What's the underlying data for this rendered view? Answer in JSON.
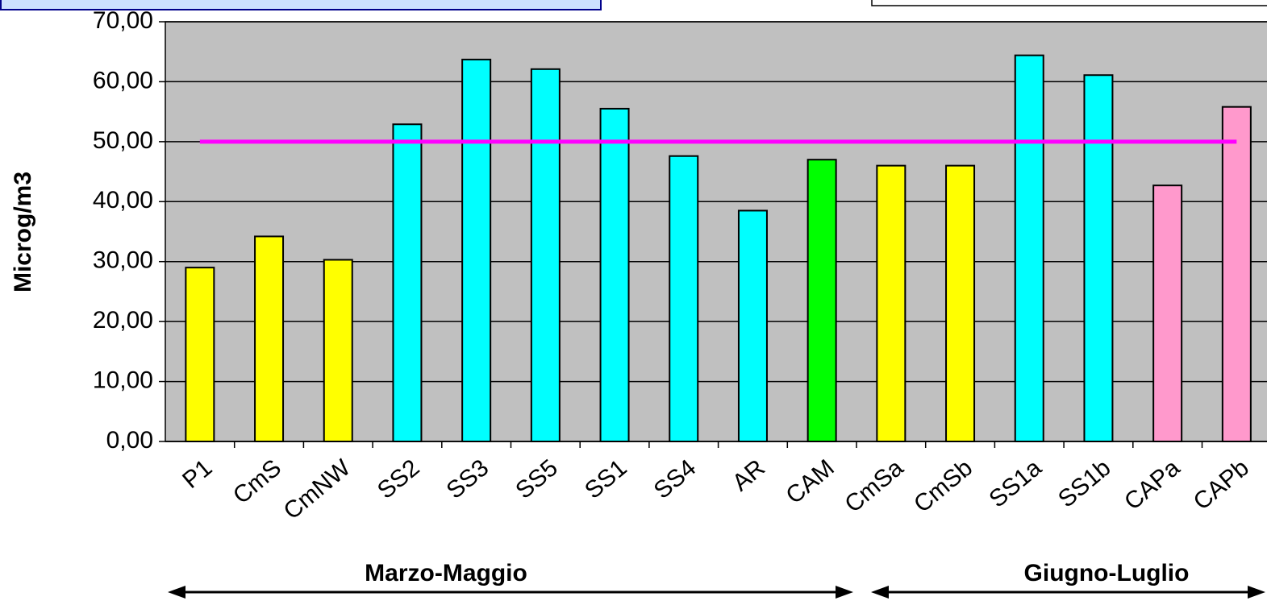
{
  "chart_data": {
    "type": "bar",
    "y_axis_label": "Microg/m3",
    "categories": [
      "P1",
      "CmS",
      "CmNW",
      "SS2",
      "SS3",
      "SS5",
      "SS1",
      "SS4",
      "AR",
      "CAM",
      "CmSa",
      "CmSb",
      "SS1a",
      "SS1b",
      "CAPa",
      "CAPb"
    ],
    "values": [
      29,
      34.2,
      30.3,
      52.9,
      63.7,
      62.1,
      55.5,
      47.6,
      38.5,
      47,
      46,
      46,
      64.4,
      61.1,
      42.7,
      55.8
    ],
    "colors": [
      "#ffff00",
      "#ffff00",
      "#ffff00",
      "#00ffff",
      "#00ffff",
      "#00ffff",
      "#00ffff",
      "#00ffff",
      "#00ffff",
      "#00ff00",
      "#ffff00",
      "#ffff00",
      "#00ffff",
      "#00ffff",
      "#ff99cc",
      "#ff99cc"
    ],
    "ylim": [
      0,
      70
    ],
    "yticks": [
      {
        "value": 0,
        "label": "0,00"
      },
      {
        "value": 10,
        "label": "10,00"
      },
      {
        "value": 20,
        "label": "20,00"
      },
      {
        "value": 30,
        "label": "30,00"
      },
      {
        "value": 40,
        "label": "40,00"
      },
      {
        "value": 50,
        "label": "50,00"
      },
      {
        "value": 60,
        "label": "60,00"
      },
      {
        "value": 70,
        "label": "70,00"
      }
    ],
    "grid": true,
    "reference_line": {
      "value": 50,
      "color": "#ff00ff"
    },
    "groups": [
      "Marzo-Maggio",
      "Giugno-Luglio"
    ]
  }
}
